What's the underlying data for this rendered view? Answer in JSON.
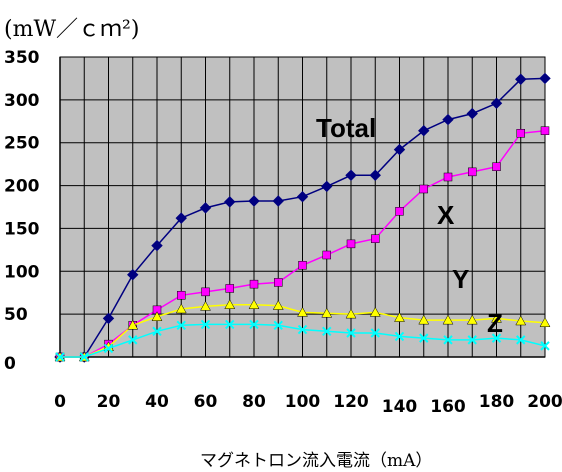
{
  "chart_data": {
    "type": "line",
    "title": "",
    "ylabel": "(mW／ｃｍ²)",
    "xlabel": "マグネトロン流入電流（mA）",
    "xlim": [
      0,
      200
    ],
    "ylim": [
      0,
      350
    ],
    "x_ticks": [
      "0",
      "20",
      "40",
      "60",
      "80",
      "100",
      "120",
      "140",
      "160",
      "180",
      "200"
    ],
    "y_ticks": [
      "0",
      "50",
      "100",
      "150",
      "200",
      "250",
      "300",
      "350"
    ],
    "grid": true,
    "plot_background": "#c0c0c0",
    "x": [
      0,
      10,
      20,
      30,
      40,
      50,
      60,
      70,
      80,
      90,
      100,
      110,
      120,
      130,
      140,
      150,
      160,
      170,
      180,
      190,
      200
    ],
    "series": [
      {
        "name": "Total",
        "color": "#000080",
        "marker": "diamond",
        "values": [
          0,
          0,
          45,
          96,
          130,
          162,
          174,
          181,
          182,
          182,
          187,
          199,
          212,
          212,
          242,
          264,
          277,
          284,
          296,
          324,
          325
        ]
      },
      {
        "name": "X",
        "color": "#ff00ff",
        "marker": "square",
        "values": [
          0,
          0,
          15,
          37,
          55,
          72,
          76,
          80,
          85,
          87,
          107,
          119,
          132,
          138,
          170,
          196,
          210,
          216,
          222,
          261,
          264
        ]
      },
      {
        "name": "Y",
        "color": "#ffff00",
        "marker": "triangle",
        "values": [
          0,
          0,
          12,
          37,
          47,
          56,
          59,
          61,
          61,
          60,
          52,
          51,
          50,
          52,
          46,
          43,
          43,
          43,
          45,
          42,
          40
        ]
      },
      {
        "name": "Z",
        "color": "#00ffff",
        "marker": "x",
        "values": [
          0,
          0,
          10,
          20,
          30,
          37,
          38,
          38,
          38,
          37,
          32,
          30,
          28,
          28,
          24,
          22,
          20,
          20,
          22,
          20,
          13
        ]
      }
    ]
  }
}
